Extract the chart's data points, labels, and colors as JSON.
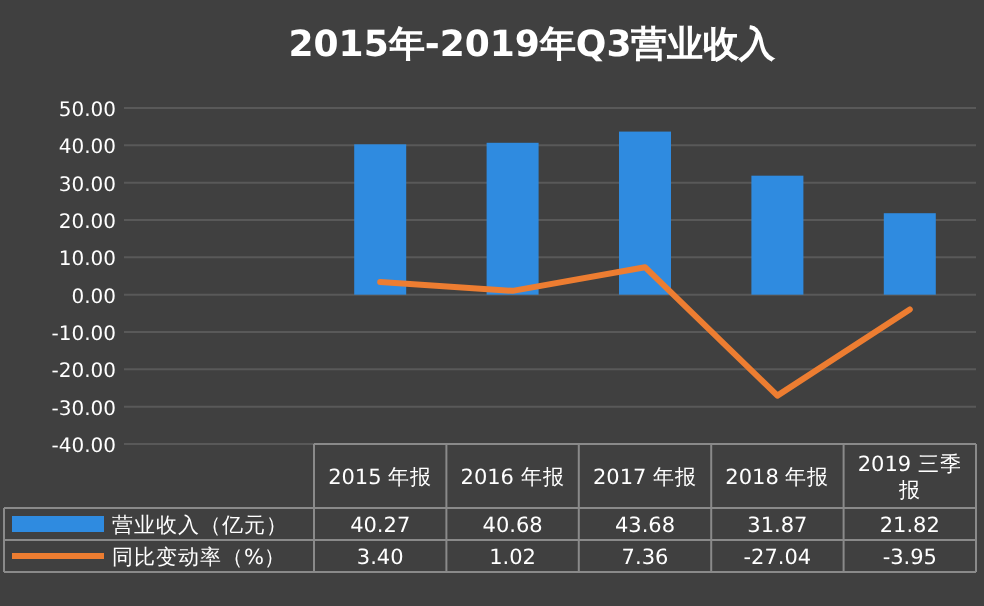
{
  "chart_data": {
    "type": "bar",
    "title": "2015年-2019年Q3营业收入",
    "categories": [
      "2015 年报",
      "2016 年报",
      "2017 年报",
      "2018 年报",
      "2019 三季报"
    ],
    "series": [
      {
        "name": "营业收入（亿元）",
        "color": "#2f8be0",
        "values": [
          40.27,
          40.68,
          43.68,
          31.87,
          21.82
        ],
        "value_labels": [
          "40.27",
          "40.68",
          "43.68",
          "31.87",
          "21.82"
        ]
      },
      {
        "name": "同比变动率（%）",
        "type": "line",
        "color": "#ed7d31",
        "values": [
          3.4,
          1.02,
          7.36,
          -27.04,
          -3.95
        ],
        "value_labels": [
          "3.40",
          "1.02",
          "7.36",
          "-27.04",
          "-3.95"
        ]
      }
    ],
    "ylim": [
      -40,
      50
    ],
    "yticks": [
      {
        "value": -40,
        "label": "-40.00"
      },
      {
        "value": -30,
        "label": "-30.00"
      },
      {
        "value": -20,
        "label": "-20.00"
      },
      {
        "value": -10,
        "label": "-10.00"
      },
      {
        "value": 0,
        "label": "0.00"
      },
      {
        "value": 10,
        "label": "10.00"
      },
      {
        "value": 20,
        "label": "20.00"
      },
      {
        "value": 30,
        "label": "30.00"
      },
      {
        "value": 40,
        "label": "40.00"
      },
      {
        "value": 50,
        "label": "50.00"
      }
    ],
    "grid": "y",
    "legend": "bottom",
    "marker": "none",
    "line_style": "solid"
  }
}
